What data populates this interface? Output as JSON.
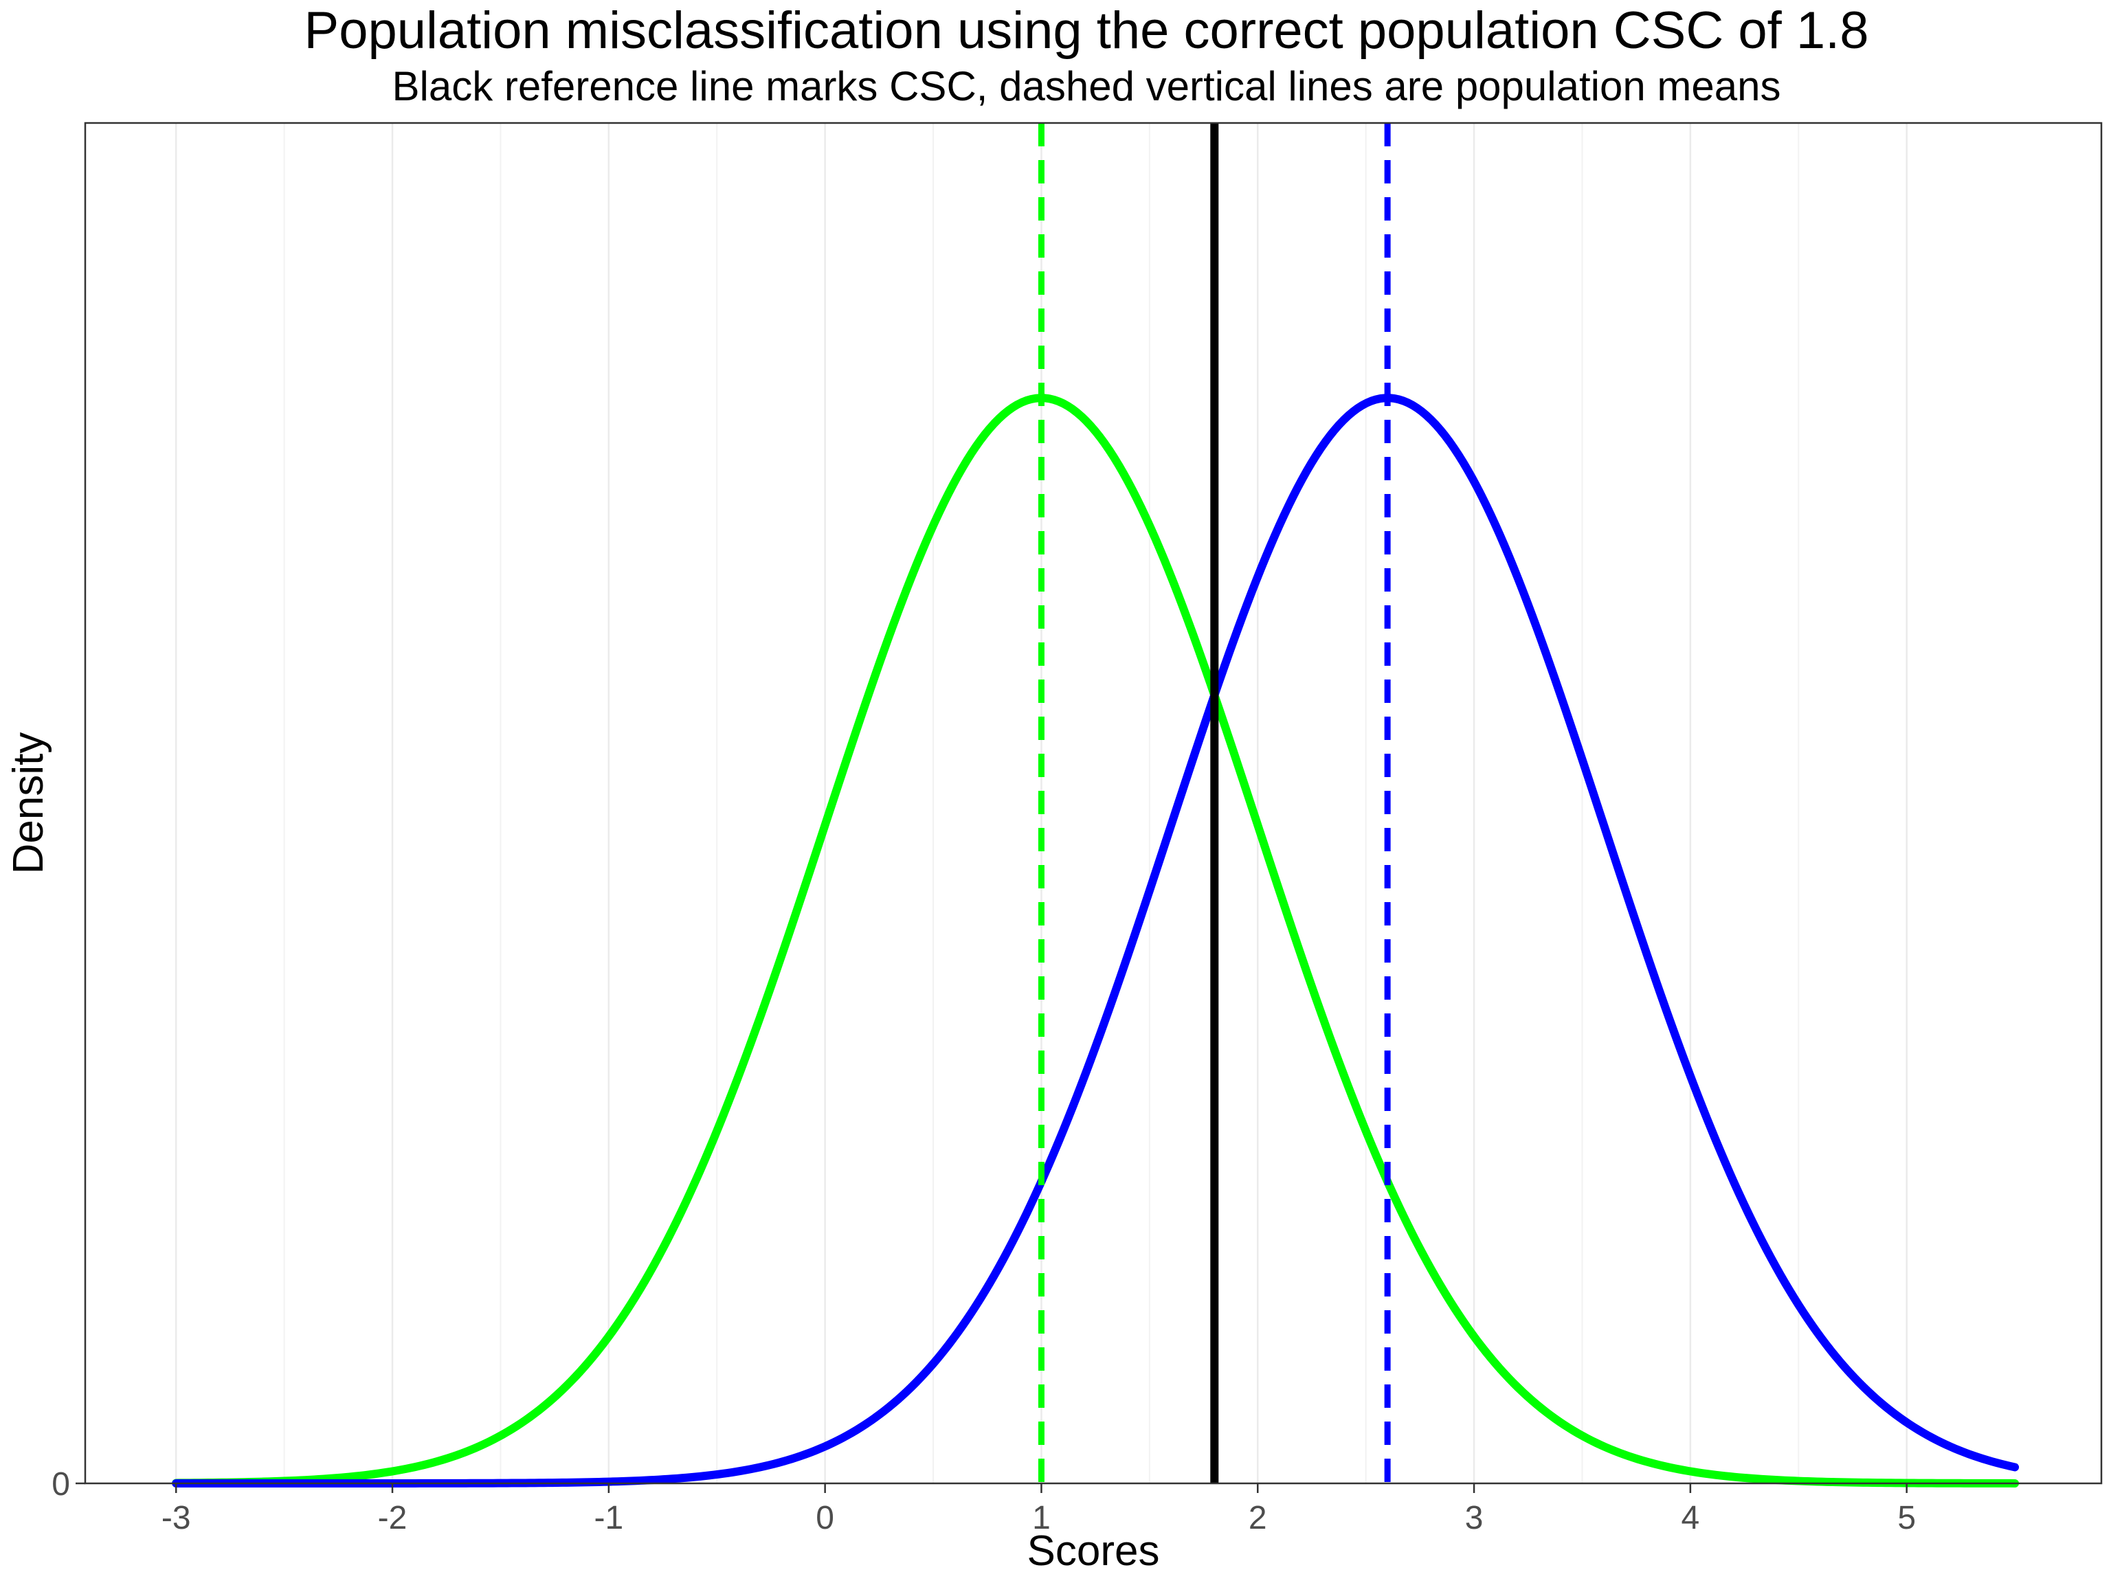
{
  "chart_data": {
    "type": "line",
    "title": "Population misclassification using the correct population CSC of 1.8",
    "subtitle": "Black reference line marks CSC, dashed vertical lines are population means",
    "xlabel": "Scores",
    "ylabel": "Density",
    "xlim": [
      -3.42,
      5.9
    ],
    "ylim": [
      0,
      0.5
    ],
    "x_ticks": [
      "-3",
      "-2",
      "-1",
      "0",
      "1",
      "2",
      "3",
      "4",
      "5"
    ],
    "y_ticks": [
      "0"
    ],
    "grid": "vertical major and minor gridlines",
    "legend": "none",
    "curve_x_range": [
      -3,
      5.5
    ],
    "series": [
      {
        "distribution": "normal",
        "mean": 1.0,
        "sd": 1.0,
        "color": "#00ff00",
        "line": "solid"
      },
      {
        "distribution": "normal",
        "mean": 2.6,
        "sd": 1.0,
        "color": "#0000ff",
        "line": "solid"
      }
    ],
    "reference_lines": [
      {
        "kind": "csc",
        "x": 1.8,
        "color": "#000000",
        "style": "solid"
      },
      {
        "kind": "mean",
        "x": 1.0,
        "color": "#00ff00",
        "style": "dashed"
      },
      {
        "kind": "mean",
        "x": 2.6,
        "color": "#0000ff",
        "style": "dashed"
      }
    ]
  }
}
